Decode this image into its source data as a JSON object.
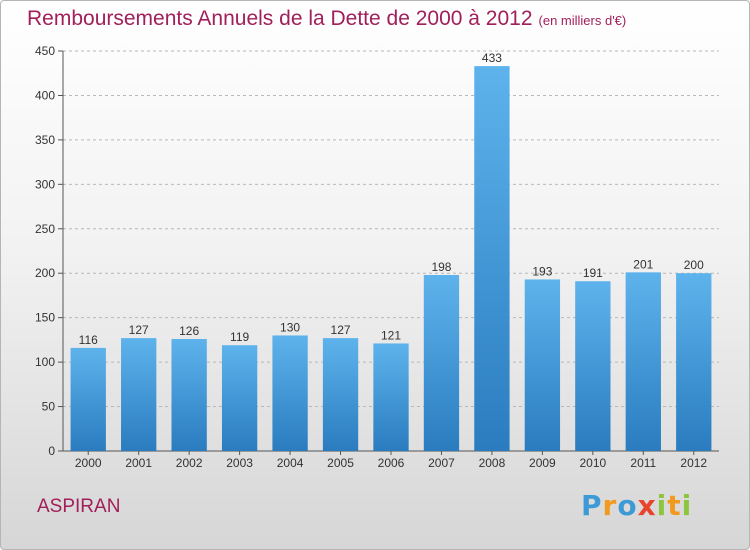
{
  "header": {
    "title": "Remboursements Annuels de la Dette de 2000 à 2012",
    "unit": "(en milliers d'€)"
  },
  "commune": "ASPIRAN",
  "logo": {
    "text": "Proxiti",
    "letters": [
      {
        "char": "P",
        "color": "#3e9ad6"
      },
      {
        "char": "r",
        "color": "#f29a1f"
      },
      {
        "char": "o",
        "color": "#3e9ad6"
      },
      {
        "char": "x",
        "color": "#e8432b"
      },
      {
        "char": "i",
        "color": "#8cc63f"
      },
      {
        "char": "t",
        "color": "#f29a1f"
      },
      {
        "char": "i",
        "color": "#8cc63f"
      }
    ]
  },
  "colors": {
    "accent": "#a11f5a",
    "bar_top": "#5eb3ec",
    "bar_bottom": "#2a7cbf",
    "grid": "#b8b8b8"
  },
  "chart_data": {
    "type": "bar",
    "title": "Remboursements Annuels de la Dette de 2000 à 2012",
    "categories": [
      "2000",
      "2001",
      "2002",
      "2003",
      "2004",
      "2005",
      "2006",
      "2007",
      "2008",
      "2009",
      "2010",
      "2011",
      "2012"
    ],
    "values": [
      116,
      127,
      126,
      119,
      130,
      127,
      121,
      198,
      433,
      193,
      191,
      201,
      200
    ],
    "ylim": [
      0,
      450
    ],
    "yticks": [
      0,
      50,
      100,
      150,
      200,
      250,
      300,
      350,
      400,
      450
    ],
    "grid": true
  }
}
